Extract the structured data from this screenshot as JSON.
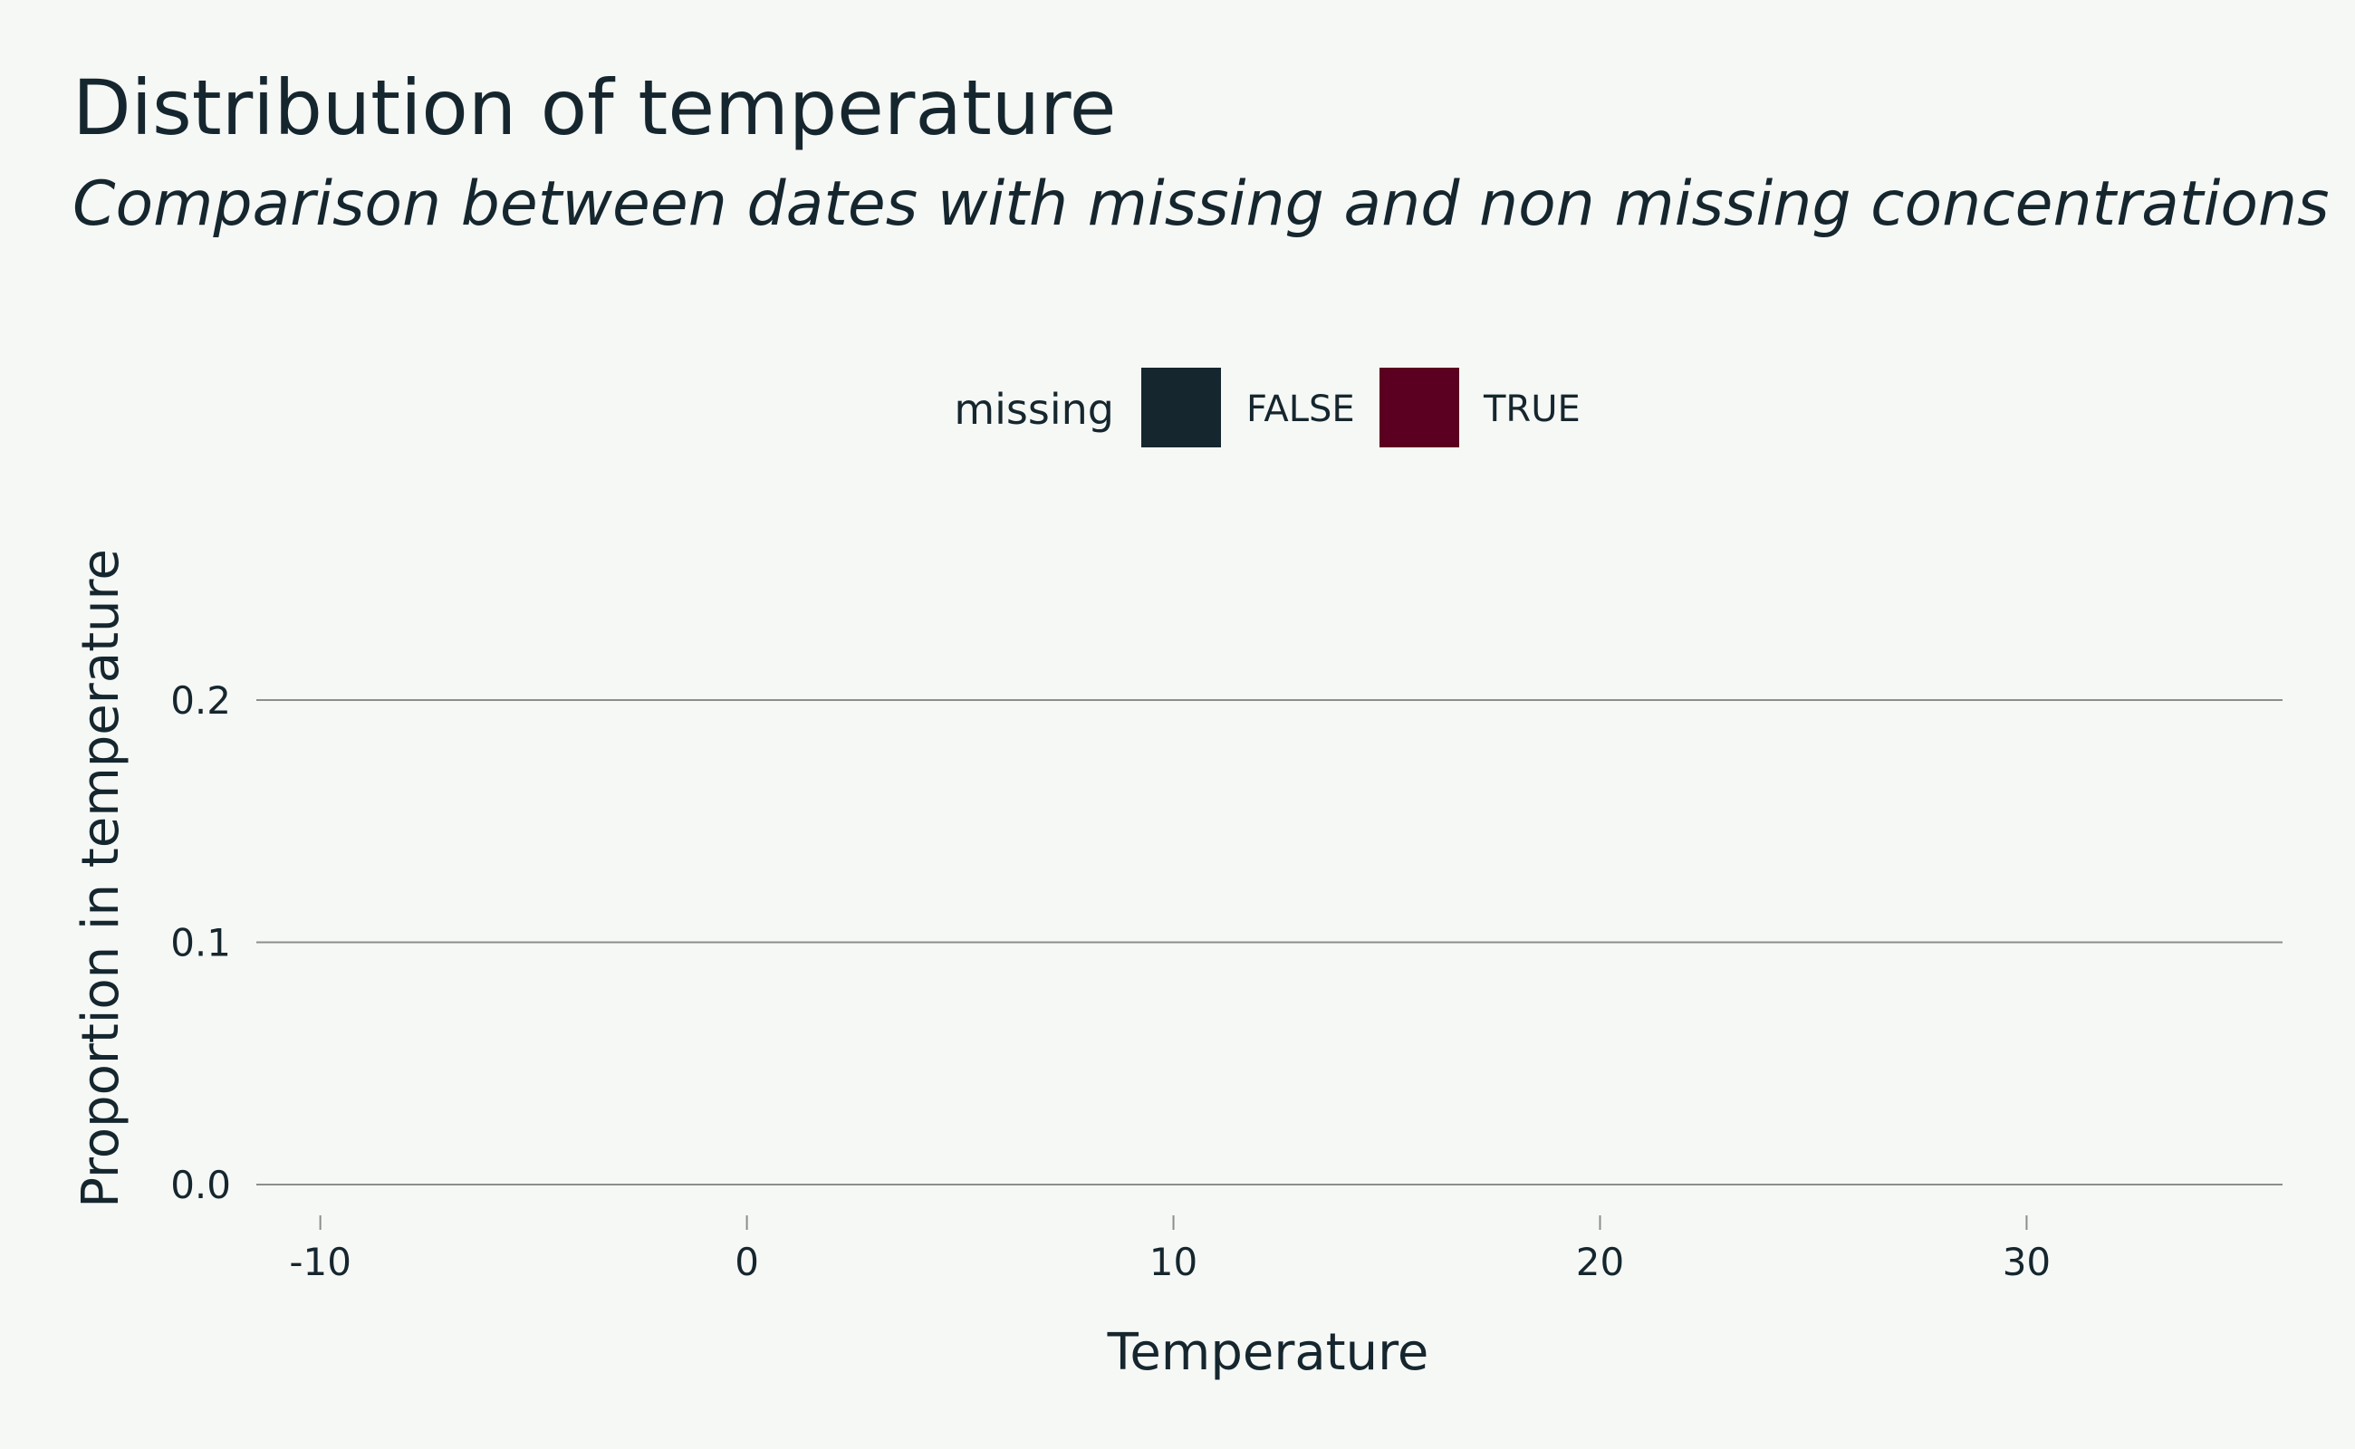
{
  "chart_data": {
    "type": "bar",
    "title": "Distribution of temperature",
    "subtitle": "Comparison between dates with missing and non missing concentrations",
    "xlabel": "Temperature",
    "ylabel": "Proportion in temperature",
    "xlim": [
      -11.5,
      36.0
    ],
    "ylim": [
      0.0,
      0.2
    ],
    "x_ticks": [
      -10,
      0,
      10,
      20,
      30
    ],
    "x_tick_labels": [
      "-10",
      "0",
      "10",
      "20",
      "30"
    ],
    "y_ticks": [
      0.0,
      0.1,
      0.2
    ],
    "y_tick_labels": [
      "0.0",
      "0.1",
      "0.2"
    ],
    "grid": "horizontal",
    "legend": {
      "title": "missing",
      "placement": "top",
      "entries": [
        {
          "label": "FALSE",
          "color": "#15262e"
        },
        {
          "label": "TRUE",
          "color": "#5b0020"
        }
      ]
    },
    "series": [
      {
        "name": "FALSE",
        "values": []
      },
      {
        "name": "TRUE",
        "values": []
      }
    ]
  }
}
